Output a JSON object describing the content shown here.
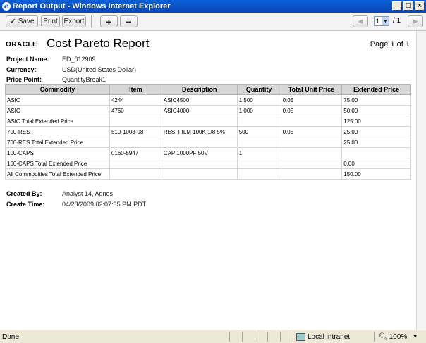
{
  "window": {
    "title": "Report Output - Windows Internet Explorer"
  },
  "toolbar": {
    "save_label": "Save",
    "print_label": "Print",
    "export_label": "Export",
    "page_value": "1",
    "page_total": "/ 1"
  },
  "report": {
    "logo": "ORACLE",
    "title": "Cost Pareto Report",
    "page_of": "Page 1 of 1",
    "project_name_label": "Project Name:",
    "project_name": "ED_012909",
    "currency_label": "Currency:",
    "currency": "USD(United States Dollar)",
    "price_point_label": "Price Point:",
    "price_point": "QuantityBreak1",
    "columns": [
      "Commodity",
      "Item",
      "Description",
      "Quantity",
      "Total Unit Price",
      "Extended Price"
    ],
    "rows": [
      [
        "ASIC",
        "4244",
        "ASIC4500",
        "1,500",
        "0.05",
        "75.00"
      ],
      [
        "ASIC",
        "4760",
        "ASIC4000",
        "1,000",
        "0.05",
        "50.00"
      ],
      [
        "ASIC Total Extended Price",
        "",
        "",
        "",
        "",
        "125.00"
      ],
      [
        "700-RES",
        "510-1003-08",
        "RES, FILM 100K 1/8 5%",
        "500",
        "0.05",
        "25.00"
      ],
      [
        "700-RES Total Extended Price",
        "",
        "",
        "",
        "",
        "25.00"
      ],
      [
        "100-CAPS",
        "0160-5947",
        "CAP 1000PF 50V",
        "1",
        "",
        ""
      ],
      [
        "100-CAPS Total Extended Price",
        "",
        "",
        "",
        "",
        "0.00"
      ],
      [
        "All Commodities Total Extended Price",
        "",
        "",
        "",
        "",
        "150.00"
      ]
    ],
    "created_by_label": "Created By:",
    "created_by": "Analyst 14, Agnes",
    "create_time_label": "Create Time:",
    "create_time": "04/28/2009 02:07:35 PM PDT"
  },
  "statusbar": {
    "text": "Done",
    "zone": "Local intranet",
    "zoom": "100%"
  },
  "icons": {
    "ie": "internet-explorer-icon",
    "save": "checkmark-icon",
    "zoom_in": "plus-icon",
    "zoom_out": "minus-icon"
  }
}
